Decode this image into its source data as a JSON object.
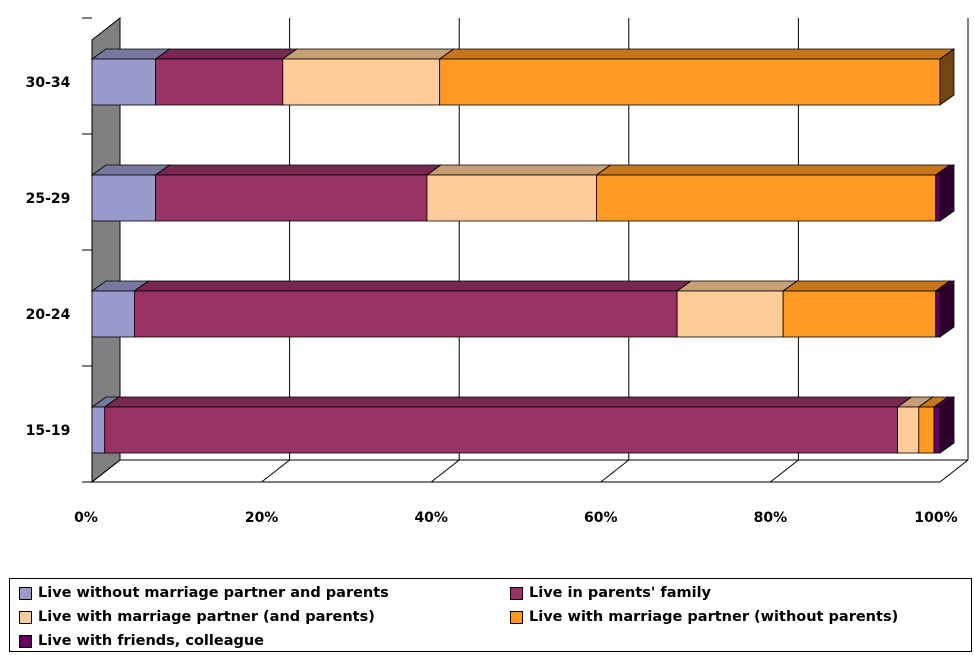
{
  "chart_data": {
    "type": "bar",
    "orientation": "horizontal",
    "stacked": "percent",
    "categories": [
      "15-19",
      "20-24",
      "25-29",
      "30-34"
    ],
    "x_ticks": [
      "0%",
      "20%",
      "40%",
      "60%",
      "80%",
      "100%"
    ],
    "xlim": [
      0,
      100
    ],
    "grid": true,
    "legend_position": "bottom",
    "series": [
      {
        "name": "Live without marriage partner and parents",
        "color": "#9999cc",
        "values": [
          1.5,
          5,
          7.5,
          7.5
        ]
      },
      {
        "name": "Live in parents' family",
        "color": "#993366",
        "values": [
          93.5,
          64,
          32,
          15
        ]
      },
      {
        "name": "Live with marriage partner (and parents)",
        "color": "#ffcc99",
        "values": [
          2.5,
          12.5,
          20,
          18.5
        ]
      },
      {
        "name": "Live with marriage partner (without parents)",
        "color": "#ff9922",
        "values": [
          1.8,
          18,
          40,
          59
        ]
      },
      {
        "name": "Live with friends, colleague",
        "color": "#660066",
        "values": [
          0.7,
          0.5,
          0.5,
          0
        ]
      }
    ]
  }
}
